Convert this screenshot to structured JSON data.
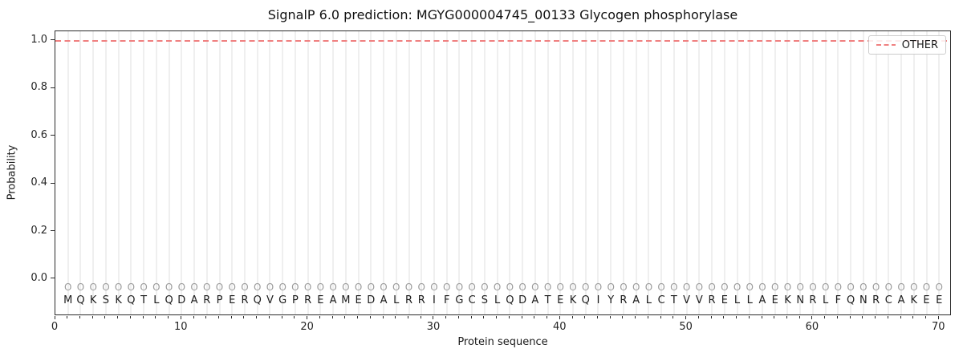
{
  "figure_title": "SignalP 6.0 prediction: MGYG000004745_00133 Glycogen phosphorylase",
  "chart_data": {
    "type": "line",
    "title": "SignalP 6.0 prediction: MGYG000004745_00133 Glycogen phosphorylase",
    "xlabel": "Protein sequence",
    "ylabel": "Probability",
    "xlim": [
      0,
      71
    ],
    "ylim": [
      -0.155,
      1.04
    ],
    "x_ticks": [
      0,
      10,
      20,
      30,
      40,
      50,
      60,
      70
    ],
    "y_ticks": [
      "0.0",
      "0.2",
      "0.4",
      "0.6",
      "0.8",
      "1.0"
    ],
    "grid": "vertical gridline at every residue position, light gray",
    "legend": {
      "position": "upper-right",
      "entries": [
        {
          "label": "OTHER",
          "color": "#f08080",
          "linestyle": "dashed"
        }
      ]
    },
    "series": [
      {
        "name": "OTHER",
        "color": "#f08080",
        "linestyle": "dashed",
        "x_start": 1,
        "x_end": 70,
        "y_constant": 1.0,
        "note": "flat probability line at 1.0 drawn edge-to-edge across the axes"
      }
    ],
    "sequence": "MQKSKQTLQDARPERQVGPREAMEDALRRIFGCSLQDATEKQIYRALCTVVRELLAEKNRLFQNRCAKEE",
    "predicted_labels": "OOOOOOOOOOOOOOOOOOOOOOOOOOOOOOOOOOOOOOOOOOOOOOOOOOOOOOOOOOOOOOOOOOOOOO",
    "sequence_row_y": -0.037,
    "predicted_row_y_note": "gray O row sits just above amino-acid row below y=0"
  },
  "colors": {
    "other_line": "#f08080",
    "grid": "#efefef",
    "axis": "#2b2b2b",
    "tick_label": "#262626",
    "aa_letter": "#1c1c1c",
    "pred_letter": "#9c9c9c",
    "legend_border": "#cccccc",
    "background": "#ffffff"
  }
}
